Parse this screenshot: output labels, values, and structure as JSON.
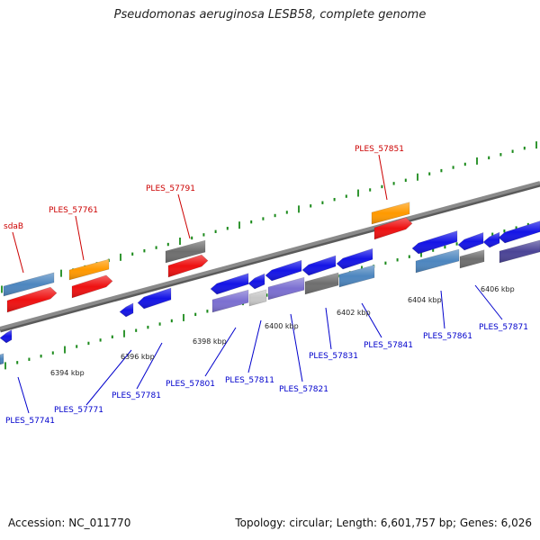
{
  "title": "Pseudomonas aeruginosa LESB58, complete genome",
  "footer": {
    "accession": "Accession: NC_011770",
    "summary": "Topology: circular; Length: 6,601,757 bp; Genes: 6,026"
  },
  "colors": {
    "backbone": "#8a8a8a",
    "label_upper": "#cc0000",
    "label_lower": "#0000cc",
    "tick": "#1b8a1b",
    "blue": "#1414e6",
    "red": "#ee1111",
    "orange": "#ff9900",
    "gray": "#6e6e6e",
    "steel": "#4d86bf",
    "lavender": "#7b6fd1",
    "light_gray": "#c8c8c8",
    "dark_purple": "#4b4496"
  },
  "scale_labels": [
    "6394 kbp",
    "6396 kbp",
    "6398 kbp",
    "6400 kbp",
    "6402 kbp",
    "6404 kbp",
    "6406 kbp"
  ],
  "gene_labels_upper": [
    "sdaB",
    "PLES_57761",
    "PLES_57791",
    "PLES_57851"
  ],
  "gene_labels_lower": [
    "PLES_57741",
    "PLES_57771",
    "PLES_57781",
    "PLES_57801",
    "PLES_57811",
    "PLES_57821",
    "PLES_57831",
    "PLES_57841",
    "PLES_57861",
    "PLES_57871"
  ]
}
